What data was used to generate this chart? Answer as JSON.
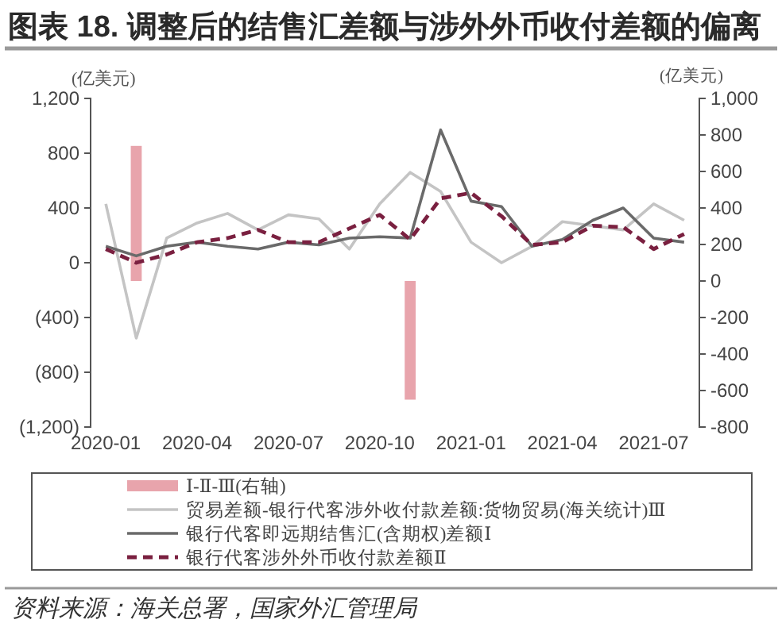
{
  "chart_data": {
    "type": "bar",
    "title": "图表 18. 调整后的结售汇差额与涉外外币收付差额的偏离",
    "ylabel": "(亿美元)",
    "y2label": "(亿美元)",
    "categories": [
      "2020-01",
      null,
      null,
      "2020-04",
      null,
      null,
      "2020-07",
      null,
      null,
      "2020-10",
      null,
      null,
      "2021-01",
      null,
      null,
      "2021-04",
      null,
      null,
      "2021-07",
      null
    ],
    "series": [
      {
        "name": "Ⅰ-Ⅱ-Ⅲ(右轴)",
        "axis": "y2",
        "color": "#e8a4ac",
        "values": [
          null,
          740,
          null,
          null,
          null,
          null,
          null,
          null,
          null,
          null,
          -650,
          null,
          null,
          null,
          null,
          null,
          null,
          null,
          null,
          null
        ]
      },
      {
        "name": "贸易差额-银行代客涉外收付款差额:货物贸易(海关统计)Ⅲ",
        "type": "line",
        "color": "#c4c4c4",
        "values": [
          430,
          -550,
          180,
          290,
          360,
          240,
          350,
          320,
          100,
          430,
          660,
          520,
          150,
          0,
          120,
          300,
          270,
          240,
          430,
          310
        ]
      },
      {
        "name": "银行代客即远期结售汇(含期权)差额Ⅰ",
        "type": "line",
        "color": "#6a6a6a",
        "values": [
          120,
          50,
          120,
          150,
          120,
          100,
          150,
          130,
          180,
          190,
          180,
          970,
          450,
          410,
          120,
          170,
          310,
          400,
          180,
          150
        ]
      },
      {
        "name": "银行代客涉外外币收付款差额Ⅱ",
        "type": "line",
        "line_style": "dashed",
        "color": "#7a2040",
        "values": [
          100,
          0,
          60,
          150,
          180,
          240,
          150,
          150,
          250,
          350,
          170,
          470,
          510,
          340,
          130,
          150,
          270,
          260,
          100,
          210
        ]
      }
    ],
    "ylim": [
      -1200,
      1200
    ],
    "yticks": [
      {
        "value": 1200,
        "label": "1,200"
      },
      800,
      400,
      0,
      {
        "value": -400,
        "label": "(400)"
      },
      {
        "value": -800,
        "label": "(800)"
      },
      {
        "value": -1200,
        "label": "(1,200)"
      }
    ],
    "y2lim": [
      -800,
      1000
    ],
    "y2ticks": [
      {
        "value": 1000,
        "label": "1,000"
      },
      800,
      600,
      400,
      200,
      0,
      -200,
      -400,
      -600,
      -800
    ],
    "legend": "bottom",
    "annotations": [
      "资料来源：海关总署，国家外汇管理局"
    ]
  }
}
